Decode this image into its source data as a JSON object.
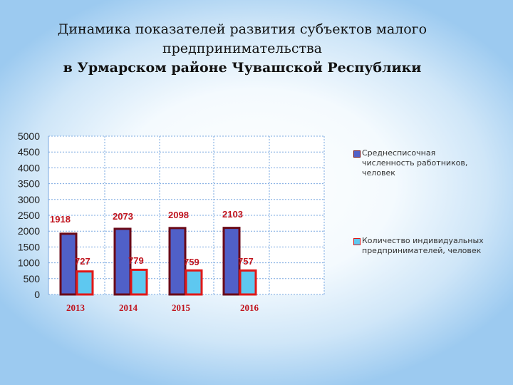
{
  "title": {
    "line1": "Динамика показателей развития субъектов малого",
    "line2": "предпринимательства",
    "line3": "в Урмарском районе Чувашской Республики"
  },
  "chart_data": {
    "type": "bar",
    "categories": [
      "2013",
      "2014",
      "2015",
      "2016"
    ],
    "series": [
      {
        "name": "Среднесписочная численность работников, человек",
        "values": [
          1918,
          2073,
          2098,
          2103
        ],
        "labels": [
          "1918",
          "2073",
          "2098",
          "2103"
        ],
        "fill": "#5060c8",
        "stroke": "#6a0a18"
      },
      {
        "name": "Количество индивидуальных предпринимателей, человек",
        "values": [
          727,
          779,
          759,
          757
        ],
        "labels": [
          "727",
          "779",
          "759",
          "757"
        ],
        "fill": "#5ec8f0",
        "stroke": "#e01818"
      }
    ],
    "yticks": [
      "5000",
      "4500",
      "4000",
      "3500",
      "3000",
      "2500",
      "2000",
      "1500",
      "1000",
      "500",
      "0"
    ],
    "ylim": [
      0,
      5000
    ],
    "grid": true,
    "legend_position": "right",
    "colors": {
      "value_label": "#c0141e",
      "category_label": "#c0141e",
      "grid": "#7aa8e0"
    }
  }
}
